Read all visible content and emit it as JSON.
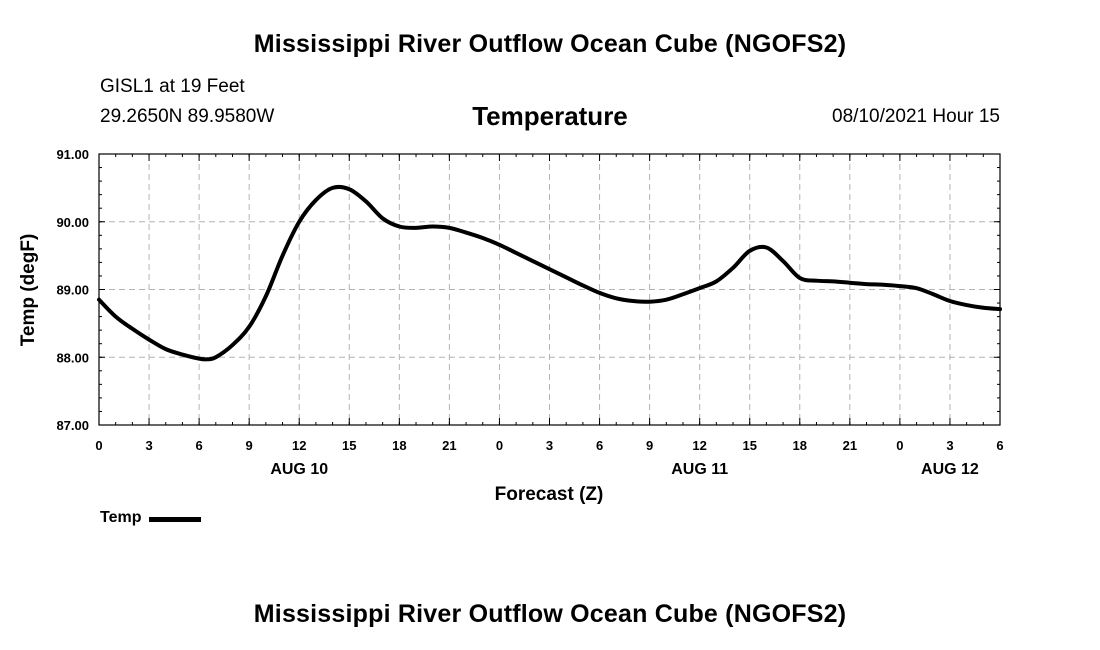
{
  "header": {
    "title": "Mississippi River Outflow Ocean Cube (NGOFS2)",
    "station": "GISL1 at 19 Feet",
    "coords": "29.2650N  89.9580W",
    "variable": "Temperature",
    "datetime": "08/10/2021 Hour 15"
  },
  "footer": {
    "title": "Mississippi River Outflow Ocean Cube (NGOFS2)"
  },
  "legend": {
    "label": "Temp"
  },
  "chart_data": {
    "type": "line",
    "title": "Temperature",
    "xlabel": "Forecast (Z)",
    "ylabel": "Temp (degF)",
    "ylim": [
      87.0,
      91.0
    ],
    "xlim": [
      0,
      54
    ],
    "yticks": [
      "87.00",
      "88.00",
      "89.00",
      "90.00",
      "91.00"
    ],
    "xtick_labels": [
      "0",
      "3",
      "6",
      "9",
      "12",
      "15",
      "18",
      "21",
      "0",
      "3",
      "6",
      "9",
      "12",
      "15",
      "18",
      "21",
      "0",
      "3",
      "6"
    ],
    "date_labels": [
      {
        "text": "AUG 10",
        "x": 12
      },
      {
        "text": "AUG 11",
        "x": 36
      },
      {
        "text": "AUG 12",
        "x": 51
      }
    ],
    "grid": true,
    "series": [
      {
        "name": "Temp",
        "color": "#000000",
        "x": [
          0,
          1,
          2,
          3,
          4,
          5,
          6,
          6.5,
          7,
          8,
          9,
          10,
          11,
          12,
          13,
          14,
          15,
          16,
          17,
          18,
          19,
          20,
          21,
          22,
          23,
          24,
          25,
          26,
          27,
          28,
          29,
          30,
          31,
          32,
          33,
          34,
          35,
          36,
          37,
          38,
          39,
          40,
          41,
          42,
          43,
          44,
          45,
          46,
          47,
          48,
          49,
          50,
          51,
          52,
          53,
          54
        ],
        "values": [
          88.85,
          88.6,
          88.42,
          88.26,
          88.12,
          88.04,
          87.98,
          87.97,
          88.0,
          88.18,
          88.45,
          88.9,
          89.5,
          90.0,
          90.32,
          90.5,
          90.48,
          90.3,
          90.05,
          89.93,
          89.91,
          89.93,
          89.91,
          89.84,
          89.76,
          89.66,
          89.54,
          89.42,
          89.3,
          89.18,
          89.06,
          88.95,
          88.87,
          88.83,
          88.82,
          88.85,
          88.93,
          89.02,
          89.12,
          89.32,
          89.57,
          89.62,
          89.42,
          89.17,
          89.13,
          89.12,
          89.1,
          89.08,
          89.07,
          89.05,
          89.02,
          88.93,
          88.83,
          88.77,
          88.73,
          88.71
        ]
      }
    ]
  }
}
